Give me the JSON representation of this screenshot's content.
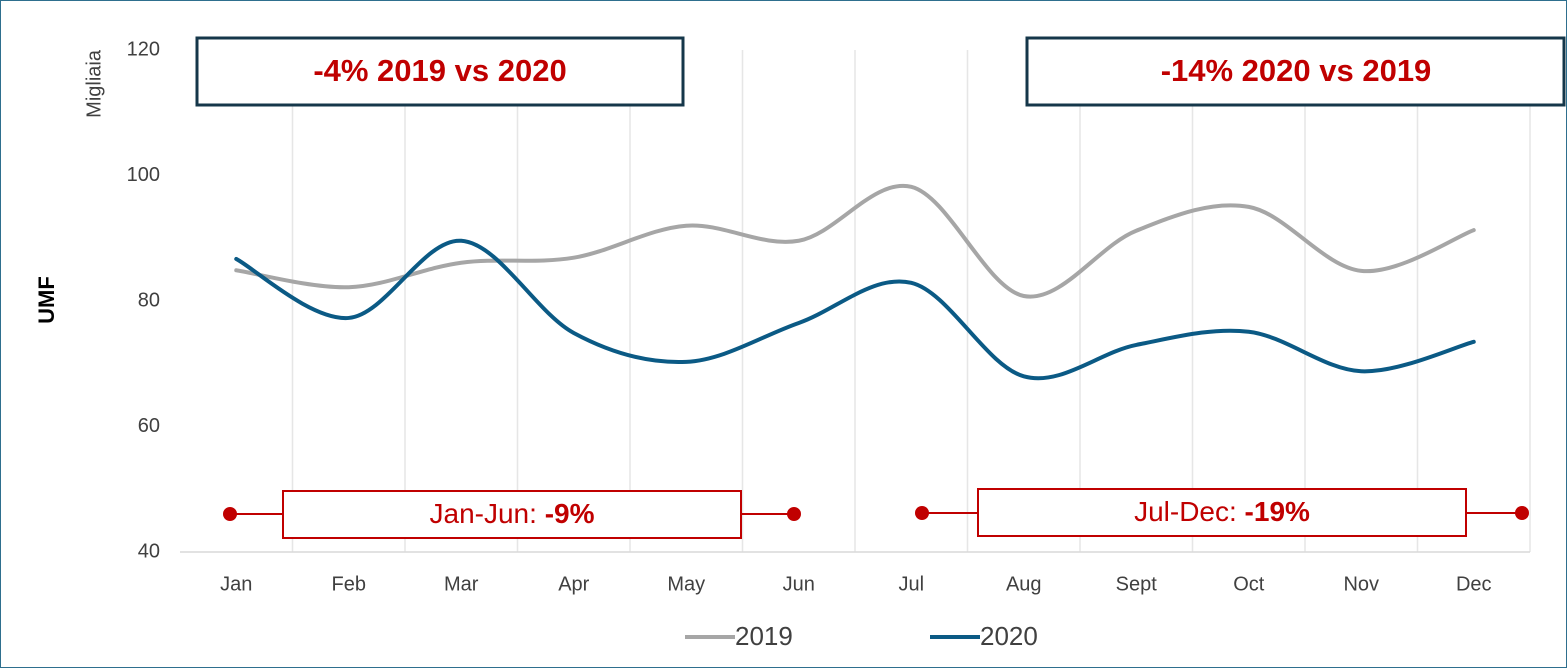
{
  "chart_data": {
    "type": "line",
    "y_label": "UMF",
    "y_unit": "Migliaia",
    "categories": [
      "Jan",
      "Feb",
      "Mar",
      "Apr",
      "May",
      "Jun",
      "Jul",
      "Aug",
      "Sept",
      "Oct",
      "Nov",
      "Dec"
    ],
    "series": [
      {
        "name": "2019",
        "color": "#a6a6a6",
        "values": [
          84.9,
          82.2,
          86.1,
          86.9,
          92.0,
          89.6,
          98.2,
          80.8,
          91.2,
          95.0,
          84.8,
          91.3
        ]
      },
      {
        "name": "2020",
        "color": "#0b5a85",
        "values": [
          86.7,
          77.3,
          89.6,
          74.9,
          70.3,
          76.5,
          82.9,
          68.0,
          73.0,
          75.1,
          68.8,
          73.5
        ]
      }
    ],
    "ylim": [
      40,
      120
    ],
    "yticks": [
      40,
      60,
      80,
      100,
      120
    ],
    "annotations": [
      {
        "text": "-4% 2019 vs 2020"
      },
      {
        "text": "-14% 2020 vs 2019"
      },
      {
        "text": "Jan-Jun: ",
        "bold": "-9%"
      },
      {
        "text": "Jul-Dec: ",
        "bold": "-19%"
      }
    ]
  }
}
